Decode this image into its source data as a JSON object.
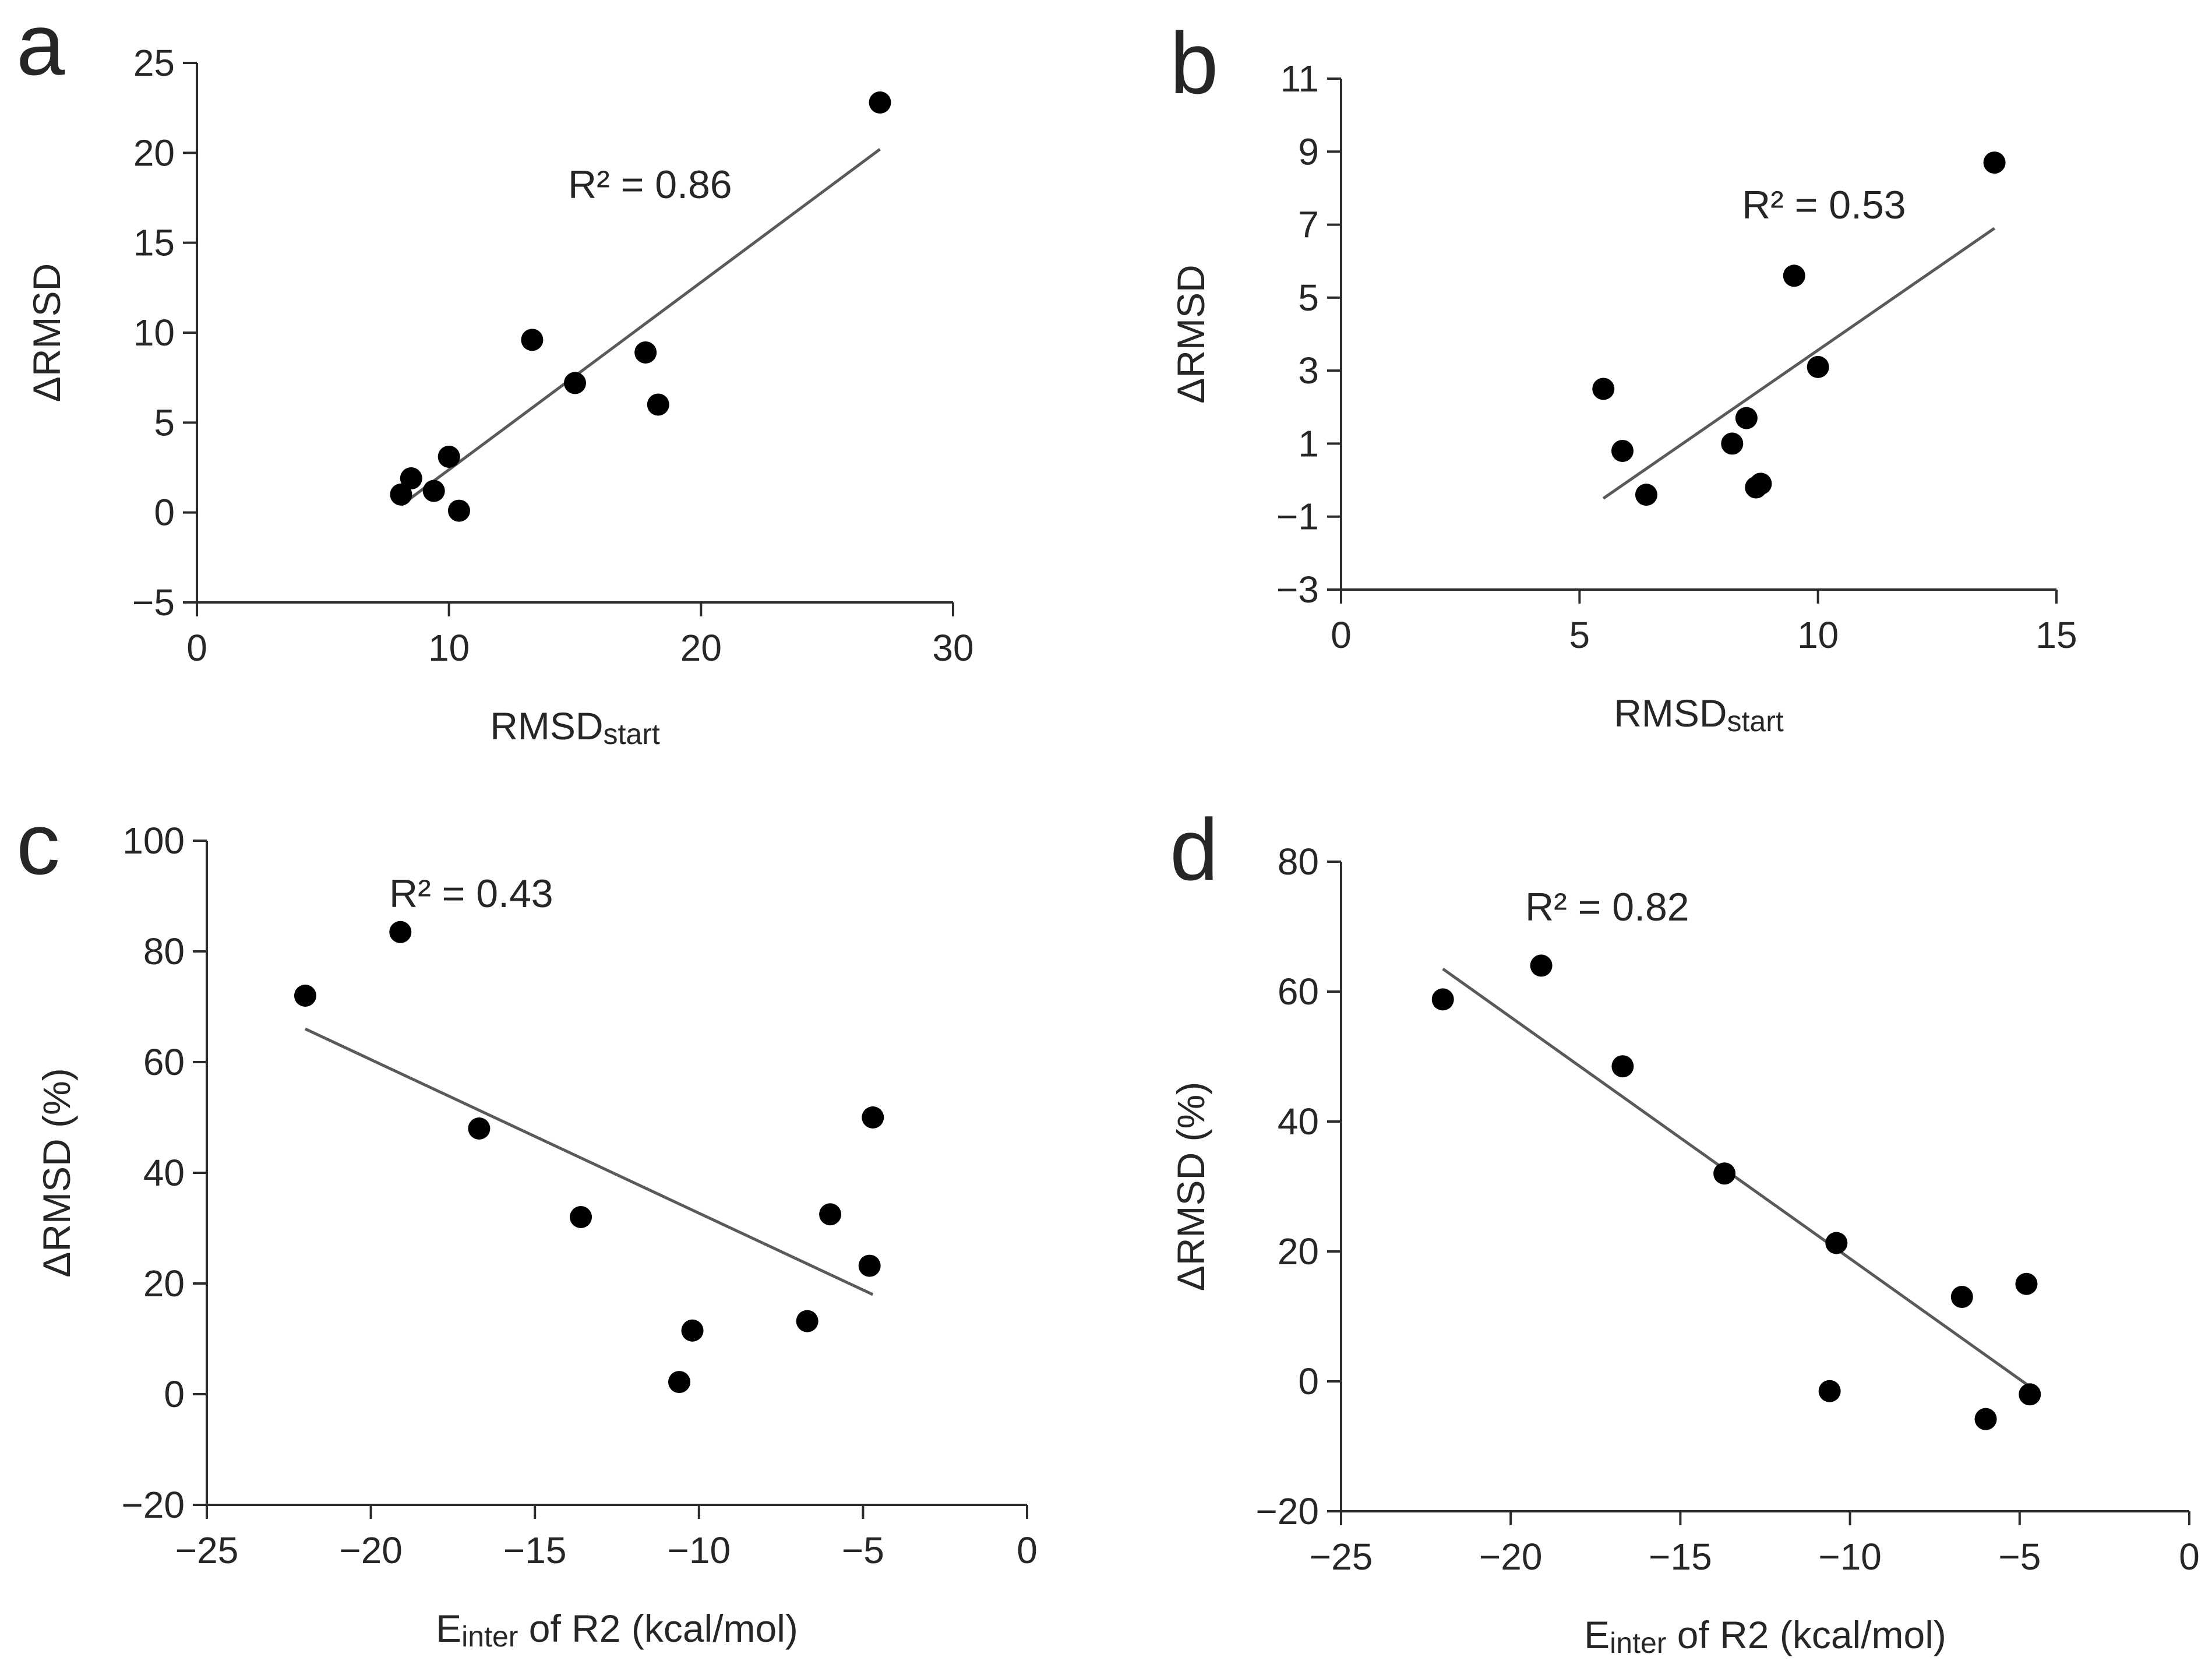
{
  "chart_data": [
    {
      "panel": "a",
      "type": "scatter",
      "xlabel": "RMSD",
      "xlabel_sub": "start",
      "ylabel": "ΔRMSD",
      "xlim": [
        0,
        30
      ],
      "ylim": [
        -5,
        25
      ],
      "xticks": [
        "0",
        "10",
        "20",
        "30"
      ],
      "yticks": [
        "−5",
        "0",
        "5",
        "10",
        "15",
        "20",
        "25"
      ],
      "annotation": "R² = 0.86",
      "points": [
        {
          "x": 8.1,
          "y": 1.0
        },
        {
          "x": 8.5,
          "y": 1.9
        },
        {
          "x": 9.4,
          "y": 1.2
        },
        {
          "x": 10.0,
          "y": 3.1
        },
        {
          "x": 10.4,
          "y": 0.1
        },
        {
          "x": 13.3,
          "y": 9.6
        },
        {
          "x": 15.0,
          "y": 7.2
        },
        {
          "x": 17.8,
          "y": 8.9
        },
        {
          "x": 18.3,
          "y": 6.0
        },
        {
          "x": 27.1,
          "y": 22.8
        }
      ],
      "trendline": [
        {
          "x": 8.1,
          "y": 0.4
        },
        {
          "x": 27.1,
          "y": 20.2
        }
      ],
      "grid": false
    },
    {
      "panel": "b",
      "type": "scatter",
      "xlabel": "RMSD",
      "xlabel_sub": "start",
      "ylabel": "ΔRMSD",
      "xlim": [
        0,
        15
      ],
      "ylim": [
        -3,
        11
      ],
      "xticks": [
        "0",
        "5",
        "10",
        "15"
      ],
      "yticks": [
        "−3",
        "−1",
        "1",
        "3",
        "5",
        "7",
        "9",
        "11"
      ],
      "annotation": "R² = 0.53",
      "points": [
        {
          "x": 5.5,
          "y": 2.5
        },
        {
          "x": 5.9,
          "y": 0.8
        },
        {
          "x": 6.4,
          "y": -0.4
        },
        {
          "x": 8.2,
          "y": 1.0
        },
        {
          "x": 8.5,
          "y": 1.7
        },
        {
          "x": 8.7,
          "y": -0.2
        },
        {
          "x": 8.8,
          "y": -0.1
        },
        {
          "x": 9.5,
          "y": 5.6
        },
        {
          "x": 10.0,
          "y": 3.1
        },
        {
          "x": 13.7,
          "y": 8.7
        }
      ],
      "trendline": [
        {
          "x": 5.5,
          "y": -0.5
        },
        {
          "x": 13.7,
          "y": 6.9
        }
      ],
      "grid": false
    },
    {
      "panel": "c",
      "type": "scatter",
      "xlabel": "E",
      "xlabel_sub": "inter",
      "xlabel_rest": " of R2 (kcal/mol)",
      "ylabel": "ΔRMSD (%)",
      "xlim": [
        -25,
        0
      ],
      "ylim": [
        -20,
        100
      ],
      "xticks": [
        "−25",
        "−20",
        "−15",
        "−10",
        "−5",
        "0"
      ],
      "yticks": [
        "−20",
        "0",
        "20",
        "40",
        "60",
        "80",
        "100"
      ],
      "annotation": "R² = 0.43",
      "points": [
        {
          "x": -22.0,
          "y": 72.0
        },
        {
          "x": -19.1,
          "y": 83.5
        },
        {
          "x": -16.7,
          "y": 48.0
        },
        {
          "x": -13.6,
          "y": 32.0
        },
        {
          "x": -10.6,
          "y": 2.2
        },
        {
          "x": -10.2,
          "y": 11.5
        },
        {
          "x": -6.7,
          "y": 13.2
        },
        {
          "x": -6.0,
          "y": 32.5
        },
        {
          "x": -4.8,
          "y": 23.2
        },
        {
          "x": -4.7,
          "y": 50.0
        }
      ],
      "trendline": [
        {
          "x": -22.0,
          "y": 66.0
        },
        {
          "x": -4.7,
          "y": 18.0
        }
      ],
      "grid": false
    },
    {
      "panel": "d",
      "type": "scatter",
      "xlabel": "E",
      "xlabel_sub": "inter",
      "xlabel_rest": " of R2 (kcal/mol)",
      "ylabel": "ΔRMSD (%)",
      "xlim": [
        -25,
        0
      ],
      "ylim": [
        -20,
        80
      ],
      "xticks": [
        "−25",
        "−20",
        "−15",
        "−10",
        "−5",
        "0"
      ],
      "yticks": [
        "−20",
        "0",
        "20",
        "40",
        "60",
        "80"
      ],
      "annotation": "R² = 0.82",
      "points": [
        {
          "x": -22.0,
          "y": 58.8
        },
        {
          "x": -19.1,
          "y": 64.0
        },
        {
          "x": -16.7,
          "y": 48.5
        },
        {
          "x": -13.7,
          "y": 32.0
        },
        {
          "x": -10.6,
          "y": -1.5
        },
        {
          "x": -10.4,
          "y": 21.3
        },
        {
          "x": -6.7,
          "y": 13.0
        },
        {
          "x": -6.0,
          "y": -5.8
        },
        {
          "x": -4.8,
          "y": 15.0
        },
        {
          "x": -4.7,
          "y": -2.0
        }
      ],
      "trendline": [
        {
          "x": -22.0,
          "y": 63.5
        },
        {
          "x": -4.7,
          "y": -0.8
        }
      ],
      "grid": false
    }
  ]
}
